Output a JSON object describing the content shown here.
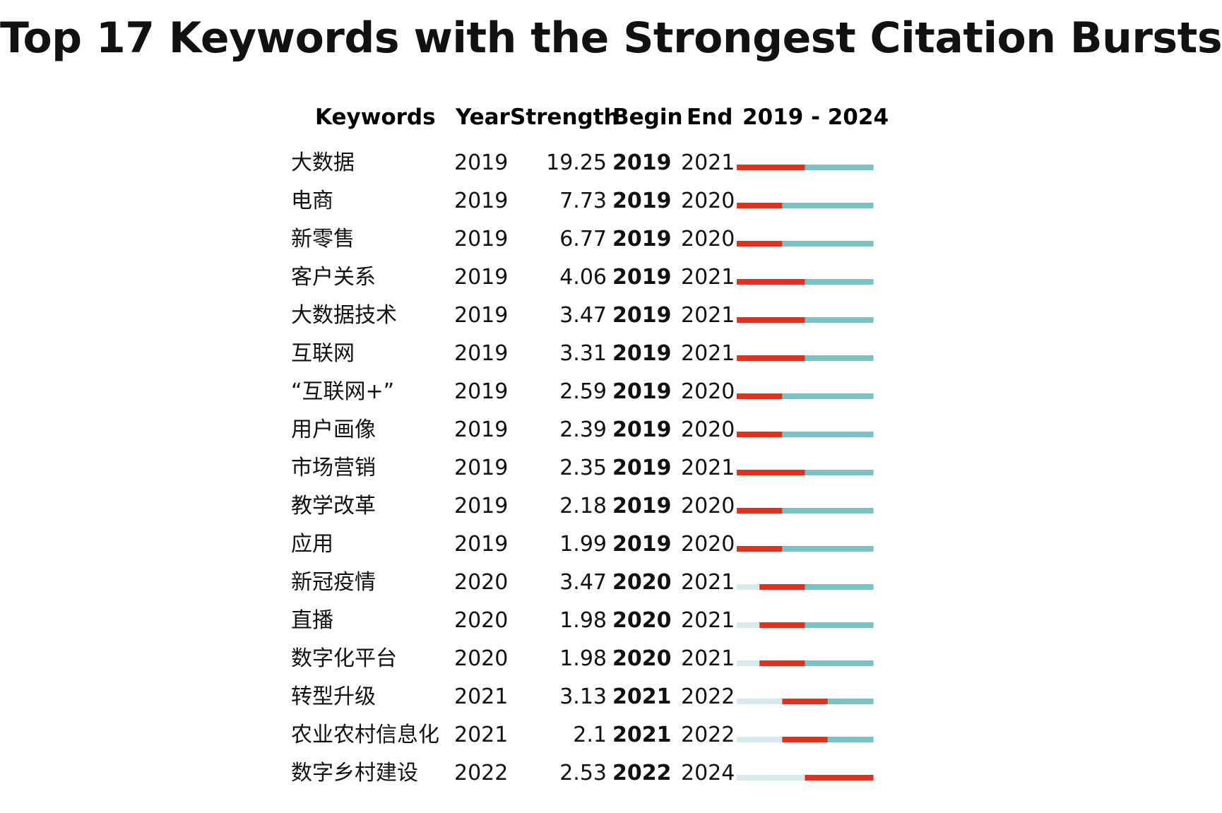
{
  "title": "Top 17 Keywords with the Strongest Citation Bursts",
  "headers": {
    "keywords": "Keywords",
    "year": "Year",
    "strength": "Strength",
    "begin": "Begin",
    "end": "End",
    "range": "2019 - 2024"
  },
  "colors": {
    "burst": "#e0331f",
    "active": "#7cc2c4",
    "inactive": "#d8eaeb",
    "text": "#111111"
  },
  "chart_data": {
    "type": "table",
    "title": "Top 17 Keywords with the Strongest Citation Bursts",
    "timeline_start": 2019,
    "timeline_end": 2024,
    "columns": [
      "Keywords",
      "Year",
      "Strength",
      "Begin",
      "End",
      "2019 - 2024"
    ],
    "rows": [
      {
        "keyword": "大数据",
        "year": "2019",
        "strength": "19.25",
        "begin": "2019",
        "end": "2021"
      },
      {
        "keyword": "电商",
        "year": "2019",
        "strength": "7.73",
        "begin": "2019",
        "end": "2020"
      },
      {
        "keyword": "新零售",
        "year": "2019",
        "strength": "6.77",
        "begin": "2019",
        "end": "2020"
      },
      {
        "keyword": "客户关系",
        "year": "2019",
        "strength": "4.06",
        "begin": "2019",
        "end": "2021"
      },
      {
        "keyword": "大数据技术",
        "year": "2019",
        "strength": "3.47",
        "begin": "2019",
        "end": "2021"
      },
      {
        "keyword": "互联网",
        "year": "2019",
        "strength": "3.31",
        "begin": "2019",
        "end": "2021"
      },
      {
        "keyword": "“互联网+”",
        "year": "2019",
        "strength": "2.59",
        "begin": "2019",
        "end": "2020"
      },
      {
        "keyword": "用户画像",
        "year": "2019",
        "strength": "2.39",
        "begin": "2019",
        "end": "2020"
      },
      {
        "keyword": "市场营销",
        "year": "2019",
        "strength": "2.35",
        "begin": "2019",
        "end": "2021"
      },
      {
        "keyword": "教学改革",
        "year": "2019",
        "strength": "2.18",
        "begin": "2019",
        "end": "2020"
      },
      {
        "keyword": "应用",
        "year": "2019",
        "strength": "1.99",
        "begin": "2019",
        "end": "2020"
      },
      {
        "keyword": "新冠疫情",
        "year": "2020",
        "strength": "3.47",
        "begin": "2020",
        "end": "2021"
      },
      {
        "keyword": "直播",
        "year": "2020",
        "strength": "1.98",
        "begin": "2020",
        "end": "2021"
      },
      {
        "keyword": "数字化平台",
        "year": "2020",
        "strength": "1.98",
        "begin": "2020",
        "end": "2021"
      },
      {
        "keyword": "转型升级",
        "year": "2021",
        "strength": "3.13",
        "begin": "2021",
        "end": "2022"
      },
      {
        "keyword": "农业农村信息化",
        "year": "2021",
        "strength": "2.1",
        "begin": "2021",
        "end": "2022"
      },
      {
        "keyword": "数字乡村建设",
        "year": "2022",
        "strength": "2.53",
        "begin": "2022",
        "end": "2024"
      }
    ]
  }
}
